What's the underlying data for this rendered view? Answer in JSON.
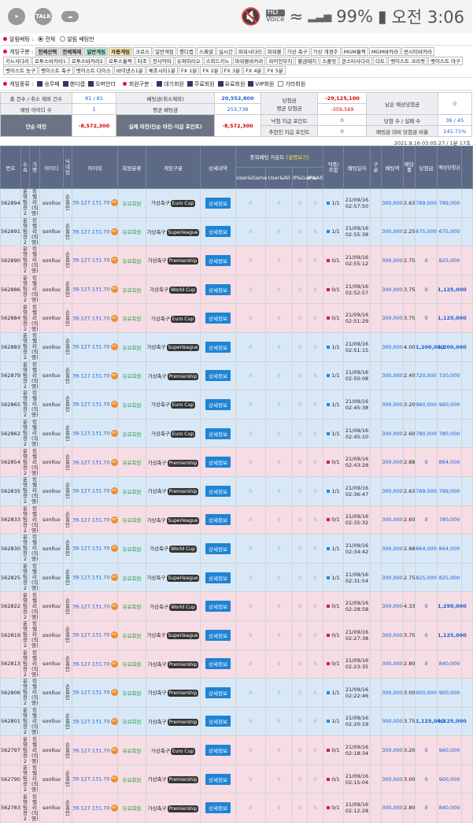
{
  "status": {
    "talk_badge": "TALK",
    "hd": "HD",
    "voice": "Voice",
    "battery": "99%",
    "time": "오전 3:06"
  },
  "alert": {
    "label": "알림배팅 :",
    "opt_all": "전체",
    "opt_alert": "알림 배팅만"
  },
  "gametype": {
    "label": "게임구분 :",
    "lines": [
      [
        {
          "t": "전체선택",
          "c": "sel"
        },
        {
          "t": "전체해제",
          "c": "sel"
        },
        {
          "t": "일반게임",
          "c": "green"
        },
        {
          "t": "자동게임",
          "c": "yellow"
        },
        {
          "t": "크로스"
        },
        {
          "t": "일반게임"
        },
        {
          "t": "핸디캡"
        },
        {
          "t": "스페셜"
        },
        {
          "t": "실시간"
        },
        {
          "t": "파워사다리"
        },
        {
          "t": "파워볼"
        },
        {
          "t": "가상 축구"
        },
        {
          "t": "가상 개경주"
        },
        {
          "t": "MGM홀짝"
        },
        {
          "t": "MGM바카라"
        },
        {
          "t": "썬시티바카라"
        }
      ],
      [
        {
          "t": "키노사다리"
        },
        {
          "t": "로투스바카라1"
        },
        {
          "t": "로투스바카라2"
        },
        {
          "t": "로투스홀짝"
        },
        {
          "t": "타조"
        },
        {
          "t": "천사악마"
        },
        {
          "t": "슈퍼마리오"
        },
        {
          "t": "스피드키노"
        },
        {
          "t": "파워볼바카라"
        },
        {
          "t": "라이언무지"
        },
        {
          "t": "황금돼지"
        },
        {
          "t": "스플릿"
        },
        {
          "t": "몬스터사다리"
        },
        {
          "t": "다트"
        },
        {
          "t": "벳이스트 크리켓"
        },
        {
          "t": "벳이스트 야구"
        }
      ],
      [
        {
          "t": "벳이스트 농구"
        },
        {
          "t": "벳이스트 축구"
        },
        {
          "t": "벳이스트 다이스"
        },
        {
          "t": "바이낸스1분"
        },
        {
          "t": "체조시티1분"
        },
        {
          "t": "FX 1분"
        },
        {
          "t": "FX 2분"
        },
        {
          "t": "FX 3분"
        },
        {
          "t": "FX 4분"
        },
        {
          "t": "FX 5분"
        }
      ]
    ]
  },
  "options": {
    "result_label": "게임종류 :",
    "results": [
      "승무패",
      "핸디캡",
      "오버언더"
    ],
    "member_label": "회원구분 :",
    "members": [
      "대기회원",
      "무료회원",
      "유료회원",
      "VIP회원"
    ],
    "fake": "가라회원"
  },
  "summary": {
    "r1": {
      "a": "총 건수 / 취소 제외 건수",
      "b": "81 / 81",
      "c": "베팅금(취소제외)",
      "d": "20,552,800",
      "e": "당첨금",
      "f": "-29,125,100",
      "g": "남은 예상당첨금",
      "h": "0"
    },
    "r2": {
      "a": "배팅 아이디 수",
      "b": "1",
      "c": "평균 베팅금",
      "d": "253,738",
      "e": "평균 당첨금",
      "f": "-359,569"
    },
    "r3": {
      "a": "단순 마진",
      "b": "-8,572,300",
      "c": "실제 마진(단순 마진-지급 포인트)",
      "d": "-8,572,300",
      "e": "낙첨 지급 포인트",
      "f": "0",
      "g": "당첨 수 / 실패 수",
      "h": "36 / 45"
    },
    "r4": {
      "e": "추천인 지급 포인트",
      "f": "0",
      "g": "배팅금 대비 당첨금 비율",
      "h": "141.71%"
    }
  },
  "timestamp": "2021.9.16 03:05:27 / 1분 17초",
  "columns": {
    "no": "번호",
    "site": "소속",
    "kind": "가맹",
    "id": "아이디",
    "nick": "닉네임",
    "ip": "아이피",
    "member": "회원분류",
    "game": "게임구분",
    "detail": "상세내역",
    "dup": "중복베팅 카운트",
    "dup_link": "[설명보기]",
    "ug": "User&Game",
    "ua": "User&All",
    "ipg": "IP&Game",
    "ipa": "IP&All",
    "hit": "적중/조합",
    "date": "배팅일자",
    "kuzen": "구분",
    "amt": "배팅액",
    "odds": "배당률",
    "win": "당첨금",
    "exp": "예상당첨금"
  },
  "row_common": {
    "site": "운영팀장2",
    "kind": "킹벨리(직영)",
    "id": "sonlluv",
    "nick": "손흥민",
    "ip": "39.127.131.70",
    "m": "m",
    "member": "유료회원",
    "game": "가상축구",
    "detail": "상세정보",
    "zero": "0",
    "date": "21/09/16"
  },
  "rows": [
    {
      "c": "b",
      "no": "562894",
      "lg": "Euro Cup",
      "r": "win",
      "hit": "1/1",
      "t": "02:57:50",
      "amt": "300,000",
      "odds": "2.63",
      "win": "789,000",
      "exp": "789,000"
    },
    {
      "c": "b",
      "no": "562891",
      "lg": "Superleague",
      "r": "win",
      "hit": "1/1",
      "t": "02:55:38",
      "amt": "300,000",
      "odds": "2.25",
      "win": "675,000",
      "exp": "675,000"
    },
    {
      "c": "p",
      "no": "562890",
      "lg": "Premiership",
      "r": "lose",
      "hit": "0/1",
      "t": "02:55:12",
      "amt": "300,000",
      "odds": "2.75",
      "win": "0",
      "exp": "825,000"
    },
    {
      "c": "p",
      "no": "562886",
      "lg": "World Cup",
      "r": "lose",
      "hit": "0/1",
      "t": "02:52:57",
      "amt": "300,000",
      "odds": "3.75",
      "win": "0",
      "exp": "1,125,000"
    },
    {
      "c": "p",
      "no": "562884",
      "lg": "Euro Cup",
      "r": "lose",
      "hit": "0/1",
      "t": "02:51:29",
      "amt": "300,000",
      "odds": "3.75",
      "win": "0",
      "exp": "1,125,000"
    },
    {
      "c": "b",
      "no": "562883",
      "lg": "Superleague",
      "r": "win",
      "hit": "1/1",
      "t": "02:51:15",
      "amt": "300,000",
      "odds": "4.00",
      "win": "1,200,000",
      "exp": "1,200,000"
    },
    {
      "c": "b",
      "no": "562879",
      "lg": "Premiership",
      "r": "win",
      "hit": "1/1",
      "t": "02:50:08",
      "amt": "300,000",
      "odds": "2.40",
      "win": "720,000",
      "exp": "720,000"
    },
    {
      "c": "b",
      "no": "562865",
      "lg": "Euro Cup",
      "r": "win",
      "hit": "1/1",
      "t": "02:45:38",
      "amt": "300,000",
      "odds": "3.20",
      "win": "960,000",
      "exp": "960,000"
    },
    {
      "c": "b",
      "no": "562862",
      "lg": "Euro Cup",
      "r": "win",
      "hit": "1/1",
      "t": "02:45:10",
      "amt": "300,000",
      "odds": "2.60",
      "win": "780,000",
      "exp": "780,000"
    },
    {
      "c": "p",
      "no": "562854",
      "lg": "Premiership",
      "r": "lose",
      "hit": "0/1",
      "t": "02:43:28",
      "amt": "300,000",
      "odds": "2.88",
      "win": "0",
      "exp": "864,000"
    },
    {
      "c": "b",
      "no": "562835",
      "lg": "Premiership",
      "r": "win",
      "hit": "1/1",
      "t": "02:36:47",
      "amt": "300,000",
      "odds": "2.63",
      "win": "789,000",
      "exp": "789,000"
    },
    {
      "c": "p",
      "no": "562833",
      "lg": "Superleague",
      "r": "lose",
      "hit": "0/1",
      "t": "02:35:32",
      "amt": "300,000",
      "odds": "2.60",
      "win": "0",
      "exp": "780,000"
    },
    {
      "c": "b",
      "no": "562830",
      "lg": "World Cup",
      "r": "win",
      "hit": "1/1",
      "t": "02:34:42",
      "amt": "300,000",
      "odds": "2.88",
      "win": "864,000",
      "exp": "864,000"
    },
    {
      "c": "b",
      "no": "562825",
      "lg": "Superleague",
      "r": "win",
      "hit": "1/1",
      "t": "02:31:54",
      "amt": "300,000",
      "odds": "2.75",
      "win": "825,000",
      "exp": "825,000"
    },
    {
      "c": "p",
      "no": "562822",
      "lg": "World Cup",
      "r": "lose",
      "hit": "0/1",
      "t": "02:28:58",
      "amt": "300,000",
      "odds": "4.33",
      "win": "0",
      "exp": "1,299,000"
    },
    {
      "c": "p",
      "no": "562819",
      "lg": "Superleague",
      "r": "lose",
      "hit": "0/1",
      "t": "02:27:38",
      "amt": "300,000",
      "odds": "3.75",
      "win": "0",
      "exp": "1,125,000"
    },
    {
      "c": "p",
      "no": "562813",
      "lg": "Premiership",
      "r": "lose",
      "hit": "0/1",
      "t": "02:23:35",
      "amt": "300,000",
      "odds": "2.80",
      "win": "0",
      "exp": "840,000"
    },
    {
      "c": "b",
      "no": "562806",
      "lg": "Premiership",
      "r": "win",
      "hit": "1/1",
      "t": "02:22:46",
      "amt": "300,000",
      "odds": "3.00",
      "win": "900,000",
      "exp": "900,000"
    },
    {
      "c": "b",
      "no": "562801",
      "lg": "Premiership",
      "r": "win",
      "hit": "1/1",
      "t": "02:20:19",
      "amt": "300,000",
      "odds": "3.75",
      "win": "1,125,000",
      "exp": "1,125,000"
    },
    {
      "c": "p",
      "no": "562797",
      "lg": "Euro Cup",
      "r": "lose",
      "hit": "0/1",
      "t": "02:18:34",
      "amt": "300,000",
      "odds": "3.20",
      "win": "0",
      "exp": "960,000"
    },
    {
      "c": "p",
      "no": "562790",
      "lg": "Premiership",
      "r": "lose",
      "hit": "0/1",
      "t": "02:15:04",
      "amt": "300,000",
      "odds": "3.00",
      "win": "0",
      "exp": "900,000"
    },
    {
      "c": "p",
      "no": "562783",
      "lg": "Premiership",
      "r": "lose",
      "hit": "0/1",
      "t": "02:12:28",
      "amt": "300,000",
      "odds": "2.80",
      "win": "0",
      "exp": "840,000"
    }
  ]
}
